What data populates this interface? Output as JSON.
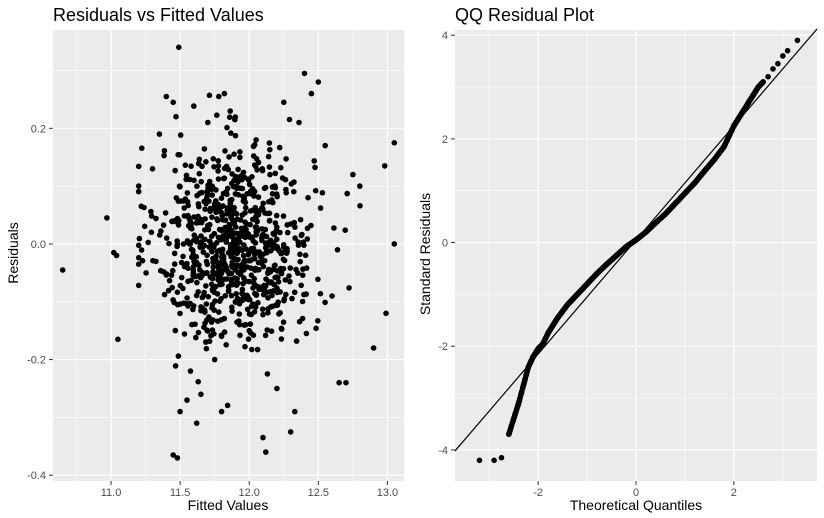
{
  "panels": [
    {
      "title": "Residuals vs Fitted Values",
      "xlabel": "Fitted Values",
      "ylabel": "Residuals",
      "xticks": [
        "11.0",
        "11.5",
        "12.0",
        "12.5",
        "13.0"
      ],
      "yticks": [
        "-0.4",
        "-0.2",
        "0.0",
        "0.2"
      ]
    },
    {
      "title": "QQ Residual Plot",
      "xlabel": "Theoretical Quantiles",
      "ylabel": "Standard Residuals",
      "xticks": [
        "-2",
        "0",
        "2"
      ],
      "yticks": [
        "-4",
        "-2",
        "0",
        "2",
        "4"
      ]
    }
  ],
  "colors": {
    "panel_background": "#ebebeb",
    "grid": "#ffffff",
    "points": "#000000"
  },
  "chart_data": [
    {
      "type": "scatter",
      "title": "Residuals vs Fitted Values",
      "xlabel": "Fitted Values",
      "ylabel": "Residuals",
      "xlim": [
        10.58,
        13.12
      ],
      "ylim": [
        -0.41,
        0.37
      ],
      "grid": true,
      "legend": "none",
      "approx_point_count": 1000,
      "x": [
        10.65,
        10.97,
        11.02,
        11.05,
        11.04,
        11.2,
        11.3,
        11.35,
        11.4,
        11.45,
        11.47,
        11.49,
        11.48,
        11.45,
        11.5,
        11.55,
        11.6,
        11.62,
        11.65,
        11.7,
        11.75,
        11.78,
        11.8,
        11.82,
        11.9,
        11.95,
        12.0,
        12.05,
        12.1,
        12.12,
        12.15,
        12.2,
        12.25,
        12.3,
        12.33,
        12.36,
        12.4,
        12.45,
        12.5,
        12.55,
        12.6,
        12.65,
        12.7,
        12.75,
        12.8,
        12.9,
        12.98,
        12.99,
        13.05,
        13.05
      ],
      "y": [
        -0.045,
        0.045,
        -0.015,
        -0.165,
        -0.02,
        0.1,
        0.13,
        0.19,
        0.255,
        0.245,
        0.22,
        0.34,
        -0.37,
        -0.365,
        -0.29,
        -0.27,
        0.11,
        -0.31,
        -0.26,
        0.21,
        -0.2,
        0.255,
        -0.29,
        0.26,
        -0.1,
        0.05,
        -0.15,
        0.18,
        -0.335,
        -0.36,
        0.12,
        -0.25,
        0.245,
        -0.325,
        -0.29,
        0.21,
        0.295,
        0.26,
        0.28,
        0.17,
        -0.09,
        -0.24,
        -0.24,
        0.12,
        0.1,
        -0.18,
        0.135,
        -0.12,
        0.175,
        0.0
      ]
    },
    {
      "type": "scatter",
      "title": "QQ Residual Plot",
      "xlabel": "Theoretical Quantiles",
      "ylabel": "Standard Residuals",
      "xlim": [
        -3.7,
        3.7
      ],
      "ylim": [
        -4.6,
        4.1
      ],
      "grid": true,
      "legend": "none",
      "approx_point_count": 1000,
      "reference_line": {
        "intercept": 0.05,
        "slope": 1.1
      },
      "x": [
        -3.2,
        -2.9,
        -2.75,
        -2.6,
        -2.5,
        -2.4,
        -2.3,
        -2.2,
        -2.1,
        -2.0,
        -1.9,
        -1.8,
        -1.6,
        -1.4,
        -1.2,
        -1.0,
        -0.8,
        -0.6,
        -0.4,
        -0.2,
        0.0,
        0.2,
        0.4,
        0.6,
        0.8,
        1.0,
        1.2,
        1.4,
        1.6,
        1.8,
        1.9,
        2.0,
        2.1,
        2.2,
        2.3,
        2.4,
        2.5,
        2.6,
        2.7,
        2.8,
        2.9,
        3.0,
        3.1,
        3.3
      ],
      "y": [
        -4.2,
        -4.2,
        -4.15,
        -3.7,
        -3.4,
        -3.1,
        -2.75,
        -2.4,
        -2.2,
        -2.05,
        -1.95,
        -1.75,
        -1.45,
        -1.2,
        -1.0,
        -0.8,
        -0.6,
        -0.42,
        -0.25,
        -0.08,
        0.05,
        0.2,
        0.38,
        0.55,
        0.75,
        0.95,
        1.15,
        1.38,
        1.6,
        1.85,
        2.05,
        2.25,
        2.4,
        2.55,
        2.7,
        2.85,
        3.0,
        3.1,
        3.2,
        3.35,
        3.45,
        3.6,
        3.7,
        3.9
      ]
    }
  ]
}
